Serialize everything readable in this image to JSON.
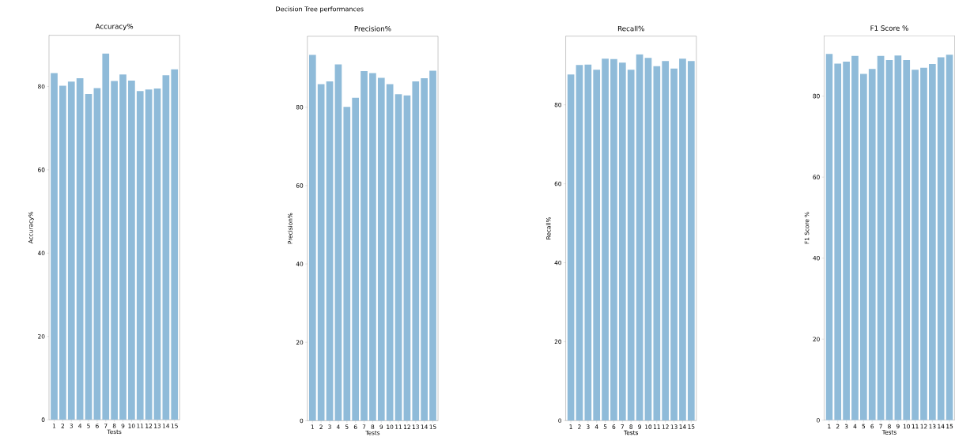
{
  "chart_data": [
    {
      "type": "other",
      "title": "Decision Tree performances"
    },
    {
      "type": "bar",
      "title": "Accuracy%",
      "xlabel": "Tests",
      "ylabel": "Accuracy%",
      "categories": [
        "1",
        "2",
        "3",
        "4",
        "5",
        "6",
        "7",
        "8",
        "9",
        "10",
        "11",
        "12",
        "13",
        "14",
        "15"
      ],
      "color": "#8fbbd9",
      "values": [
        83.2,
        80.2,
        81.2,
        82.0,
        78.2,
        79.6,
        87.9,
        81.3,
        82.9,
        81.4,
        78.9,
        79.3,
        79.5,
        82.7,
        84.1
      ],
      "ylim": [
        0,
        92.3
      ],
      "yticks": [
        0,
        20,
        40,
        60,
        80
      ]
    },
    {
      "type": "bar",
      "title": "Precision%",
      "xlabel": "Tests",
      "ylabel": "Precision%",
      "categories": [
        "1",
        "2",
        "3",
        "4",
        "5",
        "6",
        "7",
        "8",
        "9",
        "10",
        "11",
        "12",
        "13",
        "14",
        "15"
      ],
      "color": "#8fbbd9",
      "values": [
        93.4,
        85.9,
        86.6,
        90.9,
        80.1,
        82.4,
        89.2,
        88.7,
        87.5,
        85.9,
        83.3,
        83.0,
        86.6,
        87.4,
        89.3
      ],
      "ylim": [
        0,
        98.1
      ],
      "yticks": [
        0,
        20,
        40,
        60,
        80
      ]
    },
    {
      "type": "bar",
      "title": "Recall%",
      "xlabel": "Tests",
      "ylabel": "Recall%",
      "categories": [
        "1",
        "2",
        "3",
        "4",
        "5",
        "6",
        "7",
        "8",
        "9",
        "10",
        "11",
        "12",
        "13",
        "14",
        "15"
      ],
      "color": "#8fbbd9",
      "values": [
        87.7,
        90.1,
        90.2,
        88.9,
        91.7,
        91.6,
        90.7,
        88.9,
        92.8,
        91.9,
        89.8,
        91.1,
        89.2,
        91.7,
        91.1
      ],
      "ylim": [
        0,
        97.4
      ],
      "yticks": [
        0,
        20,
        40,
        60,
        80
      ]
    },
    {
      "type": "bar",
      "title": "F1 Score %",
      "xlabel": "Tests",
      "ylabel": "F1 Score %",
      "categories": [
        "1",
        "2",
        "3",
        "4",
        "5",
        "6",
        "7",
        "8",
        "9",
        "10",
        "11",
        "12",
        "13",
        "14",
        "15"
      ],
      "color": "#8fbbd9",
      "values": [
        90.4,
        88.0,
        88.5,
        89.9,
        85.5,
        86.7,
        89.9,
        88.9,
        90.0,
        88.9,
        86.5,
        87.0,
        87.9,
        89.6,
        90.2
      ],
      "ylim": [
        0,
        94.9
      ],
      "yticks": [
        0,
        20,
        40,
        60,
        80
      ]
    }
  ]
}
